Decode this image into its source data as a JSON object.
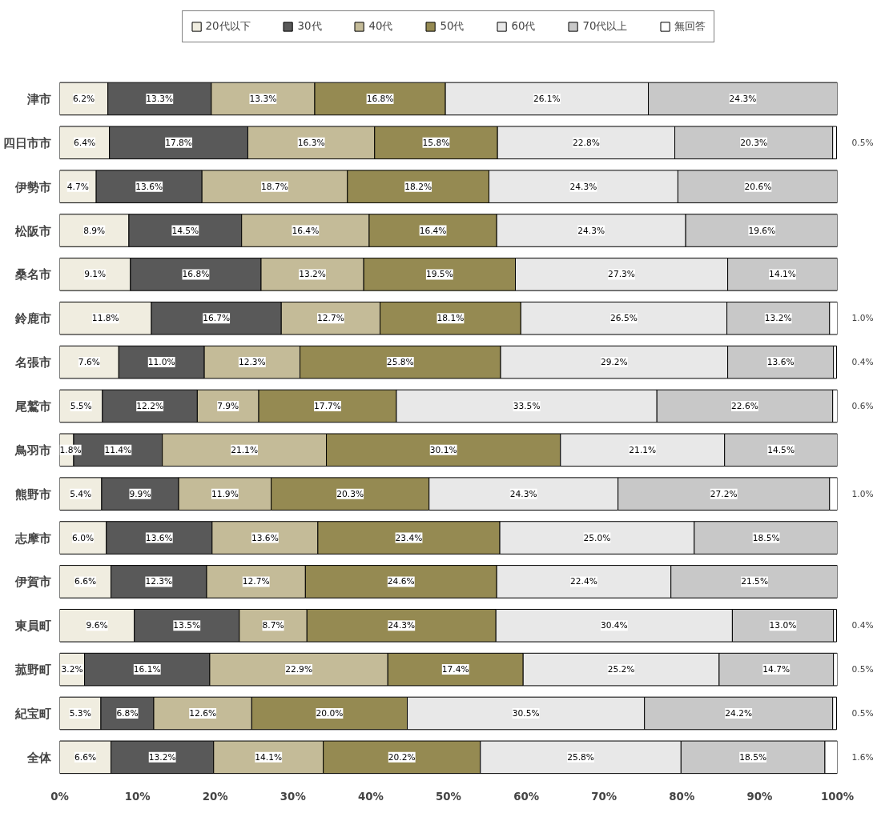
{
  "chart_data": {
    "type": "bar",
    "orientation": "horizontal",
    "stacked": true,
    "legend": "top",
    "grid": false,
    "categories": [
      "津市",
      "四日市市",
      "伊勢市",
      "松阪市",
      "桑名市",
      "鈴鹿市",
      "名張市",
      "尾鷲市",
      "鳥羽市",
      "熊野市",
      "志摩市",
      "伊賀市",
      "東員町",
      "菰野町",
      "紀宝町",
      "全体"
    ],
    "xlim": [
      0,
      100
    ],
    "xticks": [
      {
        "value": 0,
        "label": "0%"
      },
      {
        "value": 10,
        "label": "10%"
      },
      {
        "value": 20,
        "label": "20%"
      },
      {
        "value": 30,
        "label": "30%"
      },
      {
        "value": 40,
        "label": "40%"
      },
      {
        "value": 50,
        "label": "50%"
      },
      {
        "value": 60,
        "label": "60%"
      },
      {
        "value": 70,
        "label": "70%"
      },
      {
        "value": 80,
        "label": "80%"
      },
      {
        "value": 90,
        "label": "90%"
      },
      {
        "value": 100,
        "label": "100%"
      }
    ],
    "series": [
      {
        "name": "20代以下",
        "color": "#f0ede0",
        "values": [
          6.2,
          6.4,
          4.7,
          8.9,
          9.1,
          11.8,
          7.6,
          5.5,
          1.8,
          5.4,
          6.0,
          6.6,
          9.6,
          3.2,
          5.3,
          6.6
        ],
        "value_labels": [
          "6.2%",
          "6.4%",
          "4.7%",
          "8.9%",
          "9.1%",
          "11.8%",
          "7.6%",
          "5.5%",
          "1.8%",
          "5.4%",
          "6.0%",
          "6.6%",
          "9.6%",
          "3.2%",
          "5.3%",
          "6.6%"
        ]
      },
      {
        "name": "30代",
        "color": "#595959",
        "values": [
          13.3,
          17.8,
          13.6,
          14.5,
          16.8,
          16.7,
          11.0,
          12.2,
          11.4,
          9.9,
          13.6,
          12.3,
          13.5,
          16.1,
          6.8,
          13.2
        ],
        "value_labels": [
          "13.3%",
          "17.8%",
          "13.6%",
          "14.5%",
          "16.8%",
          "16.7%",
          "11.0%",
          "12.2%",
          "11.4%",
          "9.9%",
          "13.6%",
          "12.3%",
          "13.5%",
          "16.1%",
          "6.8%",
          "13.2%"
        ]
      },
      {
        "name": "40代",
        "color": "#c4bb98",
        "values": [
          13.3,
          16.3,
          18.7,
          16.4,
          13.2,
          12.7,
          12.3,
          7.9,
          21.1,
          11.9,
          13.6,
          12.7,
          8.7,
          22.9,
          12.6,
          14.1
        ],
        "value_labels": [
          "13.3%",
          "16.3%",
          "18.7%",
          "16.4%",
          "13.2%",
          "12.7%",
          "12.3%",
          "7.9%",
          "21.1%",
          "11.9%",
          "13.6%",
          "12.7%",
          "8.7%",
          "22.9%",
          "12.6%",
          "14.1%"
        ]
      },
      {
        "name": "50代",
        "color": "#958a52",
        "values": [
          16.8,
          15.8,
          18.2,
          16.4,
          19.5,
          18.1,
          25.8,
          17.7,
          30.1,
          20.3,
          23.4,
          24.6,
          24.3,
          17.4,
          20.0,
          20.2
        ],
        "value_labels": [
          "16.8%",
          "15.8%",
          "18.2%",
          "16.4%",
          "19.5%",
          "18.1%",
          "25.8%",
          "17.7%",
          "30.1%",
          "20.3%",
          "23.4%",
          "24.6%",
          "24.3%",
          "17.4%",
          "20.0%",
          "20.2%"
        ]
      },
      {
        "name": "60代",
        "color": "#e8e8e8",
        "values": [
          26.1,
          22.8,
          24.3,
          24.3,
          27.3,
          26.5,
          29.2,
          33.5,
          21.1,
          24.3,
          25.0,
          22.4,
          30.4,
          25.2,
          30.5,
          25.8
        ],
        "value_labels": [
          "26.1%",
          "22.8%",
          "24.3%",
          "24.3%",
          "27.3%",
          "26.5%",
          "29.2%",
          "33.5%",
          "21.1%",
          "24.3%",
          "25.0%",
          "22.4%",
          "30.4%",
          "25.2%",
          "30.5%",
          "25.8%"
        ]
      },
      {
        "name": "70代以上",
        "color": "#c8c8c8",
        "values": [
          24.3,
          20.3,
          20.6,
          19.6,
          14.1,
          13.2,
          13.6,
          22.6,
          14.5,
          27.2,
          18.5,
          21.5,
          13.0,
          14.7,
          24.2,
          18.5
        ],
        "value_labels": [
          "24.3%",
          "20.3%",
          "20.6%",
          "19.6%",
          "14.1%",
          "13.2%",
          "13.6%",
          "22.6%",
          "14.5%",
          "27.2%",
          "18.5%",
          "21.5%",
          "13.0%",
          "14.7%",
          "24.2%",
          "18.5%"
        ]
      },
      {
        "name": "無回答",
        "color": "#ffffff",
        "values": [
          null,
          0.5,
          null,
          null,
          null,
          1.0,
          0.4,
          0.6,
          null,
          1.0,
          null,
          null,
          0.4,
          0.5,
          0.5,
          1.6
        ],
        "value_labels": [
          null,
          "0.5%",
          null,
          null,
          null,
          "1.0%",
          "0.4%",
          "0.6%",
          null,
          "1.0%",
          null,
          null,
          "0.4%",
          "0.5%",
          "0.5%",
          "1.6%"
        ]
      }
    ]
  }
}
